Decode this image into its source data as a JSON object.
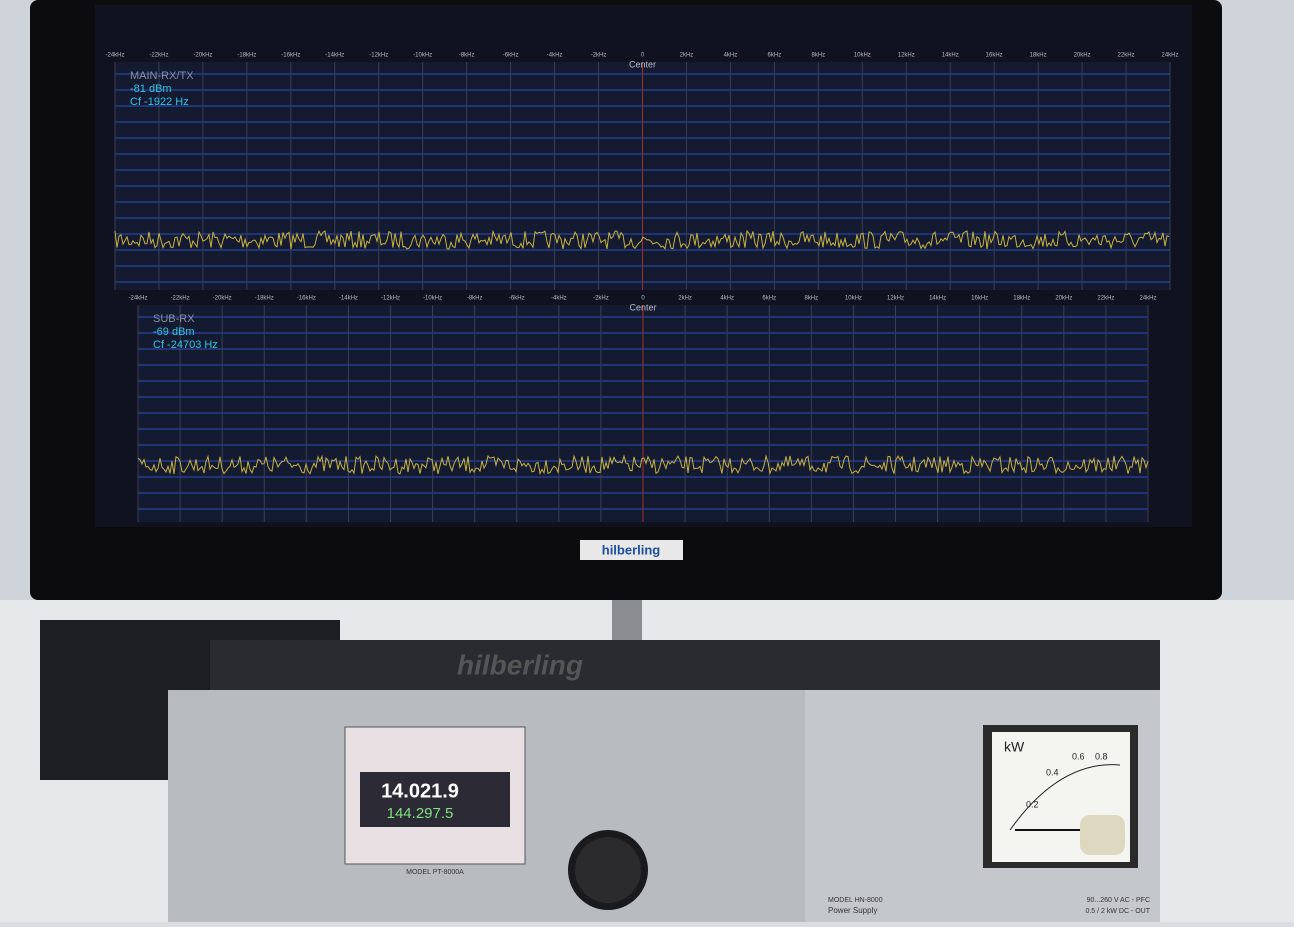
{
  "screen": {
    "panels": [
      {
        "name": "MAIN-RX/TX",
        "level": "-81 dBm",
        "offset": "Cf -1922 Hz",
        "center": "Center",
        "frequency_labels": [
          "-24kHz",
          "-22kHz",
          "-20kHz",
          "-18kHz",
          "-16kHz",
          "-14kHz",
          "-12kHz",
          "-10kHz",
          "-8kHz",
          "-6kHz",
          "-4kHz",
          "-2kHz",
          "0",
          "2kHz",
          "4kHz",
          "6kHz",
          "8kHz",
          "10kHz",
          "12kHz",
          "14kHz",
          "16kHz",
          "18kHz",
          "20kHz",
          "22kHz",
          "24kHz"
        ]
      },
      {
        "name": "SUB-RX",
        "level": "-69 dBm",
        "offset": "Cf -24703 Hz",
        "center": "Center",
        "frequency_labels": [
          "-24kHz",
          "-22kHz",
          "-20kHz",
          "-18kHz",
          "-16kHz",
          "-14kHz",
          "-12kHz",
          "-10kHz",
          "-8kHz",
          "-6kHz",
          "-4kHz",
          "-2kHz",
          "0",
          "2kHz",
          "4kHz",
          "6kHz",
          "8kHz",
          "10kHz",
          "12kHz",
          "14kHz",
          "16kHz",
          "18kHz",
          "20kHz",
          "22kHz",
          "24kHz"
        ]
      }
    ],
    "brand": "hilberling"
  },
  "transceiver": {
    "main_frequency": "14.021.9",
    "sub_frequency": "144.297.5",
    "model": "MODEL PT-8000A"
  },
  "power_supply": {
    "meter_unit": "kW",
    "meter_scale": [
      "0.2",
      "0.4",
      "0.6",
      "0.8"
    ],
    "model": "MODEL HN-8000",
    "label": "Power Supply",
    "input": "90...260 V AC - PFC",
    "output": "0.5 / 2 kW DC - OUT"
  }
}
